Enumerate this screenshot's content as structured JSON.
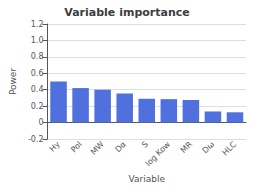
{
  "chart_data": {
    "type": "bar",
    "title": "Variable importance",
    "xlabel": "Variable",
    "ylabel": "Power",
    "categories": [
      "Hy",
      "Pol",
      "MW",
      "Dα",
      "S",
      "log Kow",
      "MR",
      "Dω",
      "HLC"
    ],
    "values": [
      0.5,
      0.42,
      0.4,
      0.355,
      0.29,
      0.285,
      0.275,
      0.135,
      0.125
    ],
    "ylim": [
      -0.2,
      1.2
    ],
    "yticks": [
      -0.2,
      0,
      0.2,
      0.4,
      0.6,
      0.8,
      {
        "value": 1.0,
        "label": "1.0"
      },
      1.2
    ],
    "grid": true
  }
}
